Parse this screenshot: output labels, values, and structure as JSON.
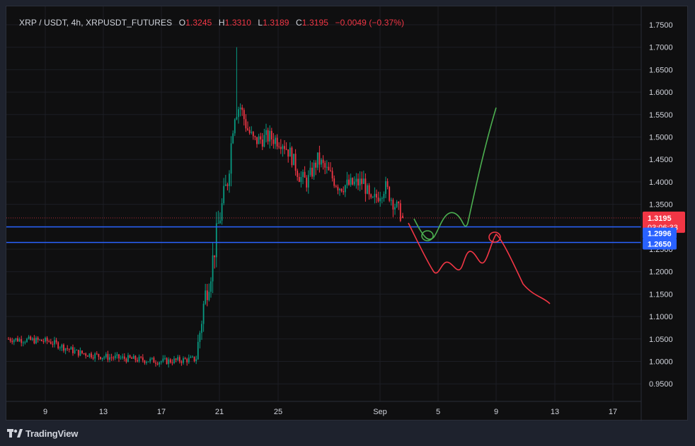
{
  "legend": {
    "symbol": "XRP / USDT, 4h, XRPUSDT_FUTURES",
    "o_label": "O",
    "o_value": "1.3245",
    "h_label": "H",
    "h_value": "1.3310",
    "l_label": "L",
    "l_value": "1.3189",
    "c_label": "C",
    "c_value": "1.3195",
    "change": "−0.0049 (−0.37%)"
  },
  "price_axis": {
    "labels": [
      "1.7500",
      "1.7000",
      "1.6500",
      "1.6000",
      "1.5500",
      "1.5000",
      "1.4500",
      "1.4000",
      "1.3500",
      "1.3000",
      "1.2500",
      "1.2000",
      "1.1500",
      "1.1000",
      "1.0500",
      "1.0000",
      "0.9500"
    ]
  },
  "time_axis": {
    "labels": [
      "9",
      "13",
      "17",
      "21",
      "25",
      "Sep",
      "5",
      "9",
      "13",
      "17"
    ]
  },
  "price_tags": [
    {
      "name": "last-price-tag",
      "price": "1.3195",
      "countdown": "03:06:33",
      "color": "#f23645"
    },
    {
      "name": "horizontal-line-tag-upper",
      "price": "1.2996",
      "color": "#2962ff"
    },
    {
      "name": "horizontal-line-tag-lower",
      "price": "1.2650",
      "color": "#2962ff"
    }
  ],
  "colors": {
    "up": "#089981",
    "down": "#f23645",
    "hline": "#2962ff",
    "green_drawing": "#4caf50",
    "red_drawing": "#f23645"
  },
  "footer": {
    "brand": "TradingView",
    "logo": "tradingview-logo-icon"
  },
  "chart_data": {
    "type": "candlestick",
    "title": "XRP / USDT, 4h, XRPUSDT_FUTURES",
    "ylim": [
      0.92,
      1.78
    ],
    "x_ticks": [
      "9",
      "13",
      "17",
      "21",
      "25",
      "Sep",
      "5",
      "9",
      "13",
      "17"
    ],
    "horizontal_lines": [
      1.2996,
      1.265
    ],
    "last_price": 1.3195,
    "price_segments": [
      {
        "from": "start",
        "to": "Aug 19",
        "start": 1.05,
        "end": 1.0,
        "trend": "sideways-down"
      },
      {
        "from": "Aug 19",
        "to": "Aug 22",
        "start": 1.0,
        "end": 1.57,
        "trend": "up",
        "spike_high": 1.7
      },
      {
        "from": "Aug 22",
        "to": "Aug 26",
        "start": 1.57,
        "end": 1.48,
        "trend": "sideways"
      },
      {
        "from": "Aug 26",
        "to": "Sep 2",
        "start": 1.48,
        "end": 1.3195,
        "trend": "down"
      }
    ],
    "drawings": [
      {
        "name": "bullish-path",
        "color": "green",
        "end_price": 1.565
      },
      {
        "name": "bearish-path",
        "color": "red",
        "end_price": 1.13
      }
    ]
  }
}
